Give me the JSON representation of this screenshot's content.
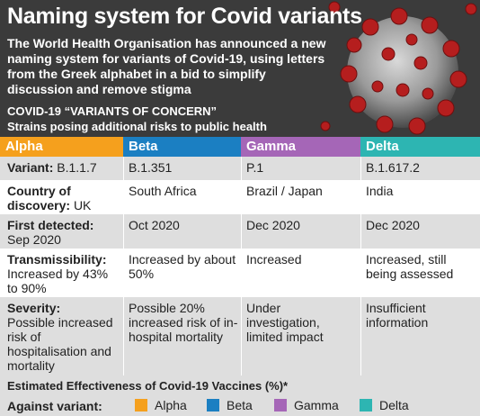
{
  "header": {
    "title": "Naming system for Covid variants",
    "description": "The World Health Organisation has announced a new naming system for variants of Covid-19, using letters from the Greek alphabet in a bid to simplify discussion and remove stigma",
    "voc_line1": "COVID-19 “VARIANTS OF CONCERN”",
    "voc_line2": "Strains posing additional risks to public health"
  },
  "columns": [
    "Alpha",
    "Beta",
    "Gamma",
    "Delta"
  ],
  "colors": {
    "alpha": "#f5a01d",
    "beta": "#1b7fc2",
    "gamma": "#a566b7",
    "delta": "#2db5b2",
    "header_bg": "#3b3b3b",
    "row_shade": "#dedede"
  },
  "rows": [
    {
      "label": "Variant:",
      "alpha": "B.1.1.7",
      "beta": "B.1.351",
      "gamma": "P.1",
      "delta": "B.1.617.2"
    },
    {
      "label": "Country of discovery:",
      "alpha": "UK",
      "beta": "South Africa",
      "gamma": "Brazil / Japan",
      "delta": "India"
    },
    {
      "label": "First detected:",
      "alpha": "Sep 2020",
      "beta": "Oct 2020",
      "gamma": "Dec 2020",
      "delta": "Dec 2020"
    },
    {
      "label": "Transmissibility:",
      "alpha": "Increased by 43% to 90%",
      "beta": "Increased by about 50%",
      "gamma": "Increased",
      "delta": "Increased, still being assessed"
    },
    {
      "label": "Severity:",
      "alpha": "Possible increased risk of hospitalisation and mortality",
      "beta": "Possible 20% increased risk of in-hospital mortality",
      "gamma": "Under investigation, limited impact",
      "delta": "Insufficient information"
    }
  ],
  "vaccines": {
    "title": "Estimated Effectiveness of Covid-19 Vaccines (%)*",
    "against_label": "Against variant:",
    "legend": [
      "Alpha",
      "Beta",
      "Gamma",
      "Delta"
    ]
  }
}
